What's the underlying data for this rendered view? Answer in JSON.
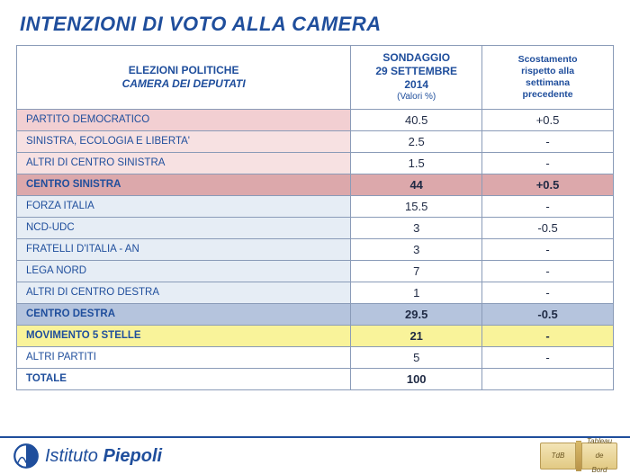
{
  "title": "INTENZIONI DI VOTO ALLA CAMERA",
  "headers": {
    "col0_line1": "ELEZIONI POLITICHE",
    "col0_line2": "CAMERA DEI DEPUTATI",
    "col1_line1": "SONDAGGIO",
    "col1_line2": "29 SETTEMBRE",
    "col1_line3": "2014",
    "col1_sub": "(Valori %)",
    "col2_line1": "Scostamento",
    "col2_line2": "rispetto alla",
    "col2_line3": "settimana",
    "col2_line4": "precedente"
  },
  "rows": [
    {
      "name": "PARTITO DEMOCRATICO",
      "value": "40.5",
      "delta": "+0.5",
      "style": "hl-pink"
    },
    {
      "name": "SINISTRA, ECOLOGIA E LIBERTA'",
      "value": "2.5",
      "delta": "-",
      "style": "hl-pink-lt"
    },
    {
      "name": "ALTRI DI CENTRO SINISTRA",
      "value": "1.5",
      "delta": "-",
      "style": "hl-pink-lt"
    },
    {
      "name": "CENTRO SINISTRA",
      "value": "44",
      "delta": "+0.5",
      "style": "hl-rose",
      "bold": true
    },
    {
      "name": "FORZA ITALIA",
      "value": "15.5",
      "delta": "-",
      "style": "hl-blue-lt"
    },
    {
      "name": "NCD-UDC",
      "value": "3",
      "delta": "-0.5",
      "style": "hl-blue-lt"
    },
    {
      "name": "FRATELLI D'ITALIA - AN",
      "value": "3",
      "delta": "-",
      "style": "hl-blue-lt"
    },
    {
      "name": "LEGA NORD",
      "value": "7",
      "delta": "-",
      "style": "hl-blue-lt"
    },
    {
      "name": "ALTRI DI CENTRO DESTRA",
      "value": "1",
      "delta": "-",
      "style": "hl-blue-lt"
    },
    {
      "name": "CENTRO DESTRA",
      "value": "29.5",
      "delta": "-0.5",
      "style": "hl-blue",
      "bold": true
    },
    {
      "name": "MOVIMENTO 5 STELLE",
      "value": "21",
      "delta": "-",
      "style": "hl-yellow",
      "bold": true
    },
    {
      "name": "ALTRI PARTITI",
      "value": "5",
      "delta": "-",
      "style": ""
    },
    {
      "name": "TOTALE",
      "value": "100",
      "delta": "",
      "style": "",
      "bold": true
    }
  ],
  "brand": {
    "part1": "Istituto ",
    "part2": "Piepoli"
  },
  "book": {
    "left": "TdB",
    "right1": "Tableau",
    "right2": "de",
    "right3": "Bord"
  },
  "colors": {
    "title": "#1f4e9c",
    "border": "#8a9bb8",
    "pink": "#f2cfd2",
    "pink_lt": "#f7e1e2",
    "rose": "#dca8ab",
    "blue": "#b5c4dd",
    "blue_lt": "#e6edf5",
    "yellow": "#f9f39a"
  }
}
